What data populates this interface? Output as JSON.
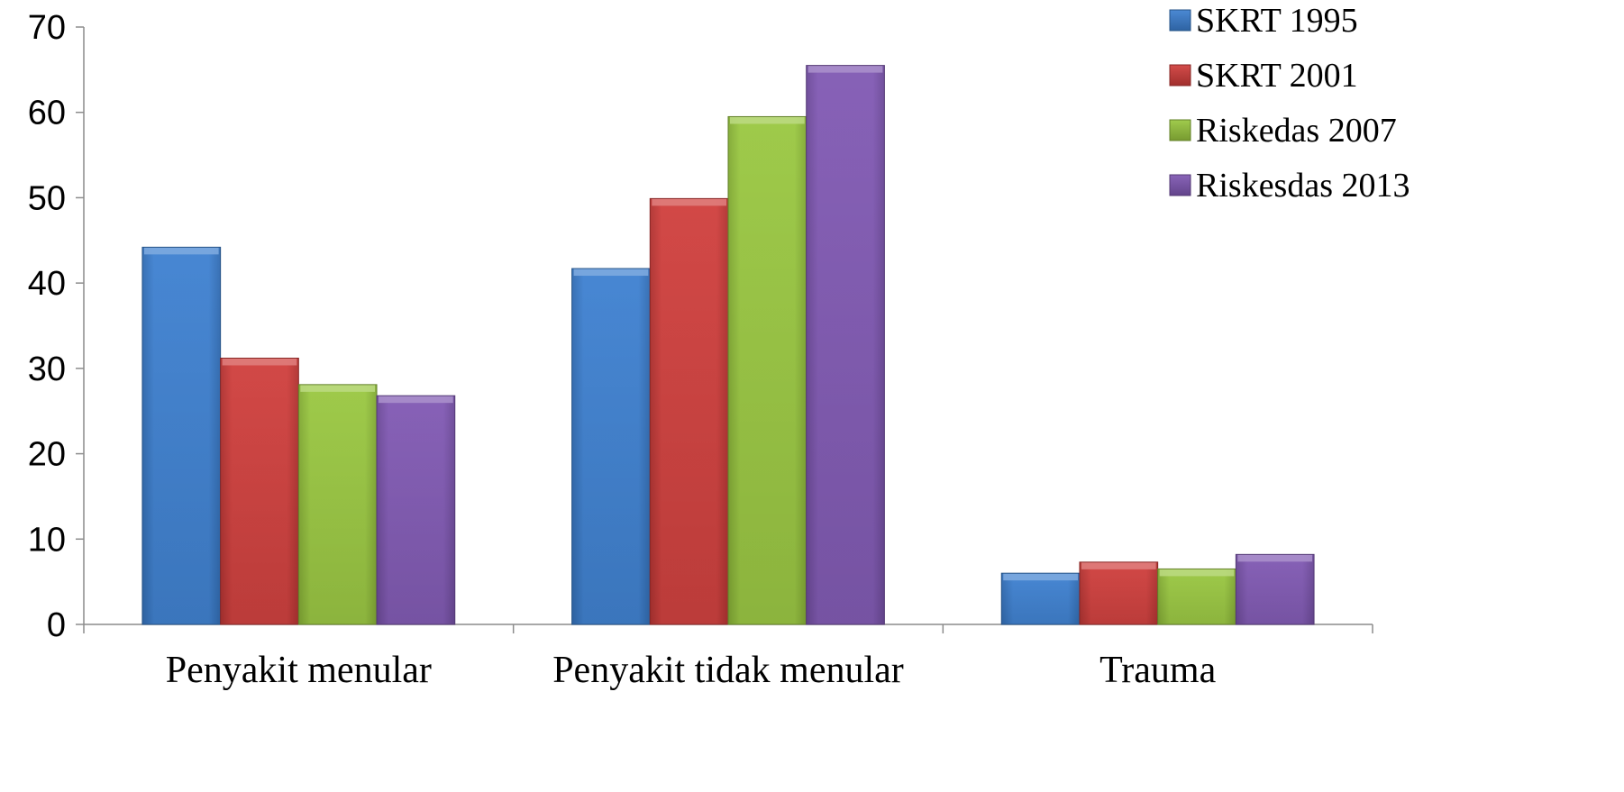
{
  "chart_data": {
    "type": "bar",
    "title": "",
    "xlabel": "",
    "ylabel": "",
    "ylim": [
      0,
      70
    ],
    "yticks": [
      0,
      10,
      20,
      30,
      40,
      50,
      60,
      70
    ],
    "grid": false,
    "legend_position": "top-right",
    "categories": [
      "Penyakit menular",
      "Penyakit tidak menular",
      "Trauma"
    ],
    "series": [
      {
        "name": "SKRT 1995",
        "color": "#3b7fd0",
        "values": [
          44.2,
          41.7,
          6.0
        ]
      },
      {
        "name": "SKRT 2001",
        "color": "#cf3c3a",
        "values": [
          31.2,
          49.9,
          7.3
        ]
      },
      {
        "name": "Riskedas 2007",
        "color": "#98c63e",
        "values": [
          28.1,
          59.5,
          6.5
        ]
      },
      {
        "name": "Riskesdas 2013",
        "color": "#7f57b2",
        "values": [
          26.8,
          65.5,
          8.2
        ]
      }
    ]
  }
}
